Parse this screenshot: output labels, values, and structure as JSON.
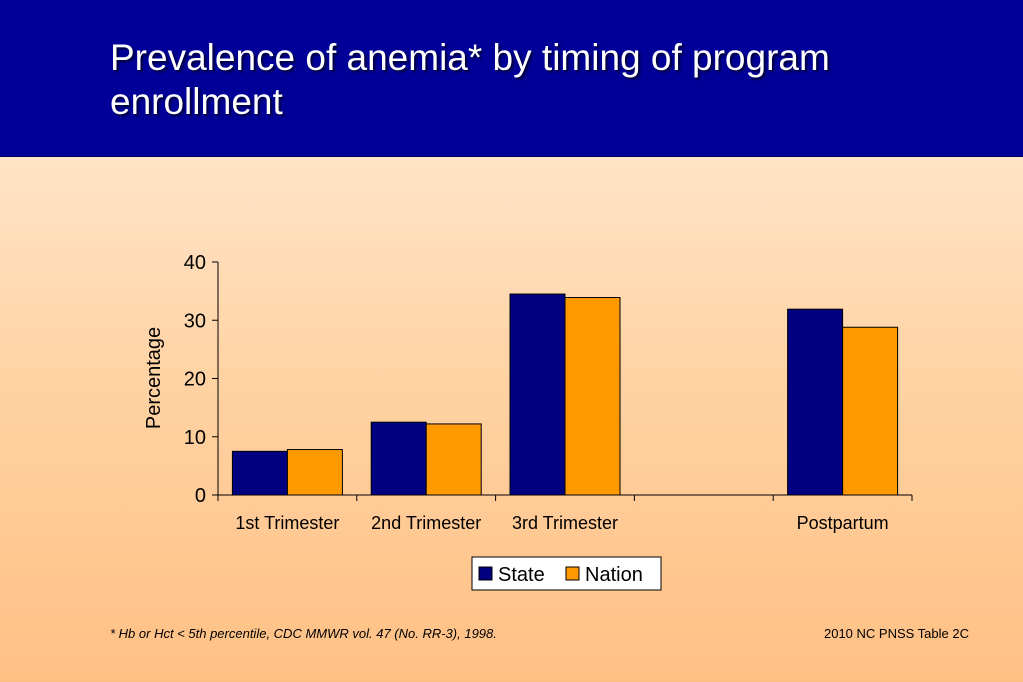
{
  "slide": {
    "title": "Prevalence of anemia* by timing of program enrollment",
    "footnote": "*  Hb or Hct < 5th percentile, CDC MMWR vol. 47 (No. RR-3), 1998.",
    "source": "2010 NC PNSS Table 2C"
  },
  "colors": {
    "header": "#000099",
    "state": "#000080",
    "nation": "#ff9900"
  },
  "chart_data": {
    "type": "bar",
    "title": "",
    "xlabel": "",
    "ylabel": "Percentage",
    "ylim": [
      0,
      40
    ],
    "yticks": [
      0,
      10,
      20,
      30,
      40
    ],
    "categories": [
      "1st Trimester",
      "2nd Trimester",
      "3rd Trimester",
      "",
      "Postpartum"
    ],
    "series": [
      {
        "name": "State",
        "values": [
          7.5,
          12.5,
          34.5,
          null,
          31.9
        ]
      },
      {
        "name": "Nation",
        "values": [
          7.8,
          12.2,
          33.9,
          null,
          28.8
        ]
      }
    ],
    "legend": "bottom-center",
    "grid": false
  }
}
